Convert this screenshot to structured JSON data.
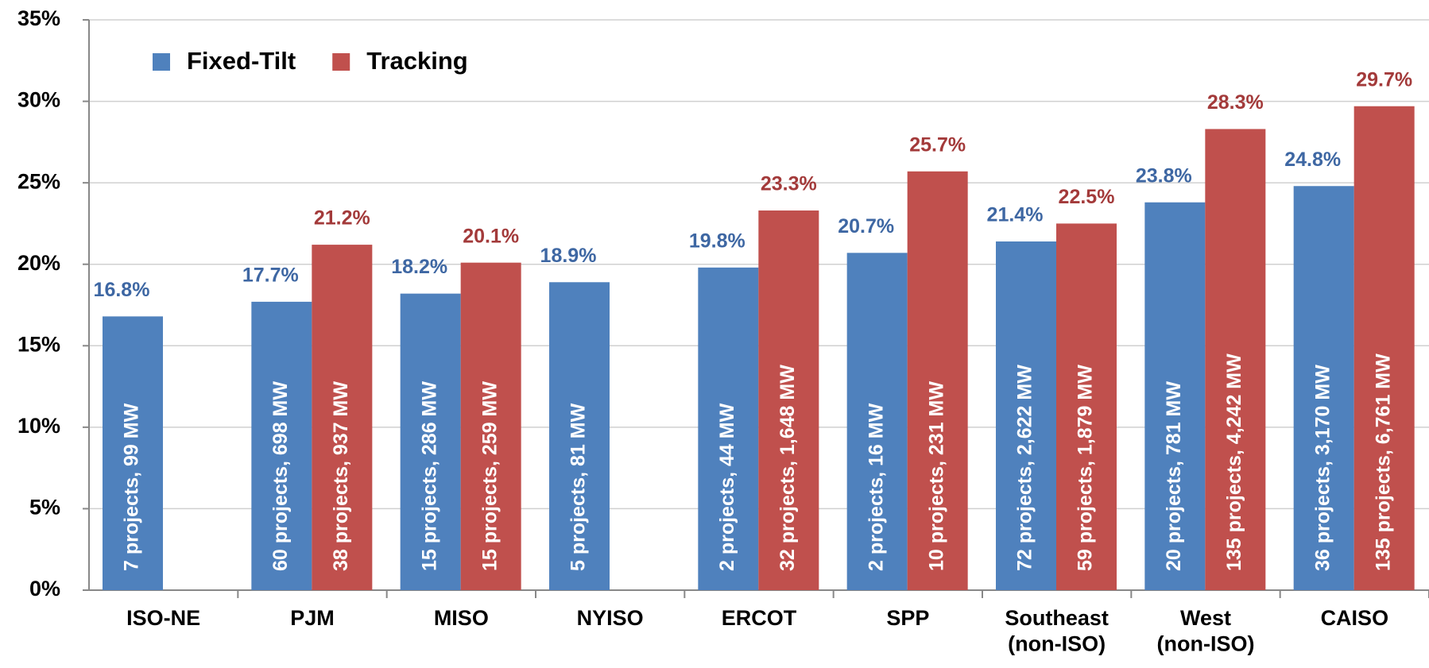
{
  "chart_data": {
    "type": "bar",
    "categories": [
      "ISO-NE",
      "PJM",
      "MISO",
      "NYISO",
      "ERCOT",
      "SPP",
      "Southeast\n(non-ISO)",
      "West\n(non-ISO)",
      "CAISO"
    ],
    "series": [
      {
        "name": "Fixed-Tilt",
        "color": "#4f81bd",
        "label_color": "#3e67a3",
        "values": [
          16.8,
          17.7,
          18.2,
          18.9,
          19.8,
          20.7,
          21.4,
          23.8,
          24.8
        ],
        "value_labels": [
          "16.8%",
          "17.7%",
          "18.2%",
          "18.9%",
          "19.8%",
          "20.7%",
          "21.4%",
          "23.8%",
          "24.8%"
        ],
        "annotations": [
          "7 projects, 99 MW",
          "60 projects, 698 MW",
          "15 projects, 286 MW",
          "5 projects, 81 MW",
          "2 projects, 44 MW",
          "2 projects, 16 MW",
          "72 projects, 2,622 MW",
          "20 projects, 781 MW",
          "36 projects, 3,170 MW"
        ]
      },
      {
        "name": "Tracking",
        "color": "#c0504d",
        "label_color": "#a33a3a",
        "values": [
          null,
          21.2,
          20.1,
          null,
          23.3,
          25.7,
          22.5,
          28.3,
          29.7
        ],
        "value_labels": [
          null,
          "21.2%",
          "20.1%",
          null,
          "23.3%",
          "25.7%",
          "22.5%",
          "28.3%",
          "29.7%"
        ],
        "annotations": [
          null,
          "38 projects, 937 MW",
          "15 projects, 259 MW",
          null,
          "32 projects, 1,648 MW",
          "10 projects, 231 MW",
          "59 projects, 1,879 MW",
          "135 projects, 4,242 MW",
          "135 projects, 6,761 MW"
        ]
      }
    ],
    "ylim": [
      0,
      35
    ],
    "yticks": [
      {
        "value": 0,
        "label": "0%"
      },
      {
        "value": 5,
        "label": "5%"
      },
      {
        "value": 10,
        "label": "10%"
      },
      {
        "value": 15,
        "label": "15%"
      },
      {
        "value": 20,
        "label": "20%"
      },
      {
        "value": 25,
        "label": "25%"
      },
      {
        "value": 30,
        "label": "30%"
      },
      {
        "value": 35,
        "label": "35%"
      }
    ],
    "grid": true,
    "legend": "top-left"
  }
}
